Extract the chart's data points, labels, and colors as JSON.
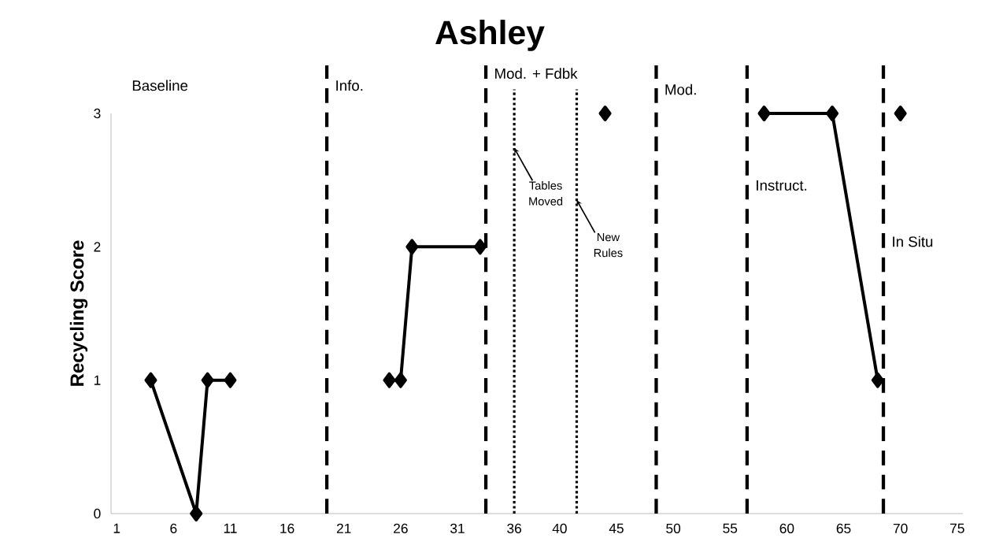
{
  "chart_data": {
    "type": "line",
    "title": "Ashley",
    "ylabel": "Recycling Score",
    "series": [
      {
        "color": "#000000",
        "x": [
          4,
          8,
          9,
          11
        ],
        "values": [
          1,
          0,
          1,
          1
        ]
      },
      {
        "color": "#000000",
        "x": [
          25,
          26,
          27,
          33
        ],
        "values": [
          1,
          1,
          2,
          2
        ]
      },
      {
        "color": "#000000",
        "x": [
          44
        ],
        "values": [
          3
        ]
      },
      {
        "color": "#000000",
        "x": [
          58,
          64,
          68
        ],
        "values": [
          3,
          3,
          1
        ]
      },
      {
        "color": "#000000",
        "x": [
          70
        ],
        "values": [
          3
        ]
      }
    ],
    "xlim": [
      0.5,
      75.5
    ],
    "xticks": [
      1,
      6,
      11,
      16,
      21,
      26,
      31,
      36,
      40,
      45,
      50,
      55,
      60,
      65,
      70,
      75
    ],
    "ylim": [
      0,
      3
    ],
    "yticks": [
      0,
      1,
      2,
      3
    ],
    "marker": "diamond",
    "line_style": "solid",
    "ref_lines": [
      {
        "axis": "x",
        "value": 19.5,
        "line_style": "dashed",
        "label": "Info."
      },
      {
        "axis": "x",
        "value": 33.5,
        "line_style": "dashed",
        "label": "Mod. + Fdbk"
      },
      {
        "axis": "x",
        "value": 36,
        "line_style": "dotted",
        "label": "Tables Moved"
      },
      {
        "axis": "x",
        "value": 41.5,
        "line_style": "dotted",
        "label": "New Rules"
      },
      {
        "axis": "x",
        "value": 48.5,
        "line_style": "dashed",
        "label": "Mod."
      },
      {
        "axis": "x",
        "value": 56.5,
        "line_style": "dashed",
        "label": "Instruct."
      },
      {
        "axis": "x",
        "value": 68.5,
        "line_style": "dashed",
        "label": "In Situ"
      }
    ],
    "annotations": [
      "Baseline"
    ]
  }
}
